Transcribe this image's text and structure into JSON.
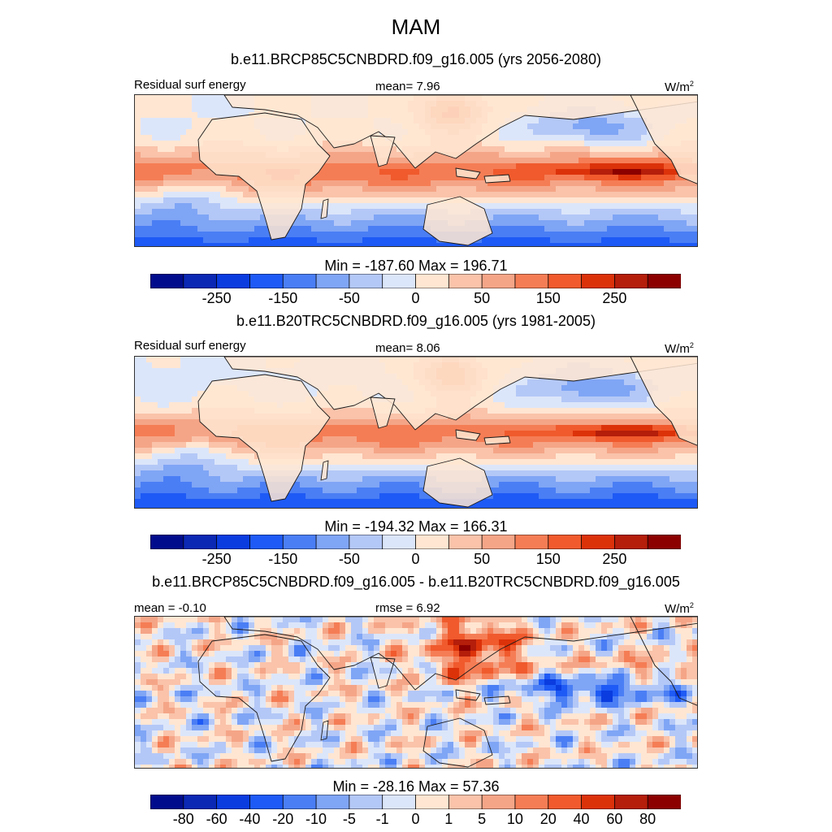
{
  "chart_data": [
    {
      "type": "heatmap",
      "figure_title": "MAM",
      "title": "b.e11.BRCP85C5CNBDRD.f09_g16.005 (yrs 2056-2080)",
      "left_label": "Residual surf energy",
      "center_label": "mean=   7.96",
      "units": "W/m",
      "units_sup": "2",
      "minmax": "Min = -187.60 Max = 196.71",
      "colorbar_levels": [
        "-250",
        "-150",
        "-50",
        "0",
        "50",
        "150",
        "250"
      ],
      "colorbar_colors": [
        "#000c8c",
        "#0a28b4",
        "#0a3ce0",
        "#1e5af5",
        "#4a7ef5",
        "#7fa5f5",
        "#b4c8f7",
        "#dce6fa",
        "#ffe6d2",
        "#fac3aa",
        "#f5a587",
        "#f57d55",
        "#f05a2d",
        "#dc320a",
        "#b41e0a",
        "#8c0000"
      ]
    },
    {
      "type": "heatmap",
      "title": "b.e11.B20TRC5CNBDRD.f09_g16.005 (yrs 1981-2005)",
      "left_label": "Residual surf energy",
      "center_label": "mean=   8.06",
      "units": "W/m",
      "units_sup": "2",
      "minmax": "Min = -194.32 Max = 166.31",
      "colorbar_levels": [
        "-250",
        "-150",
        "-50",
        "0",
        "50",
        "150",
        "250"
      ]
    },
    {
      "type": "heatmap",
      "title": "b.e11.BRCP85C5CNBDRD.f09_g16.005 - b.e11.B20TRC5CNBDRD.f09_g16.005",
      "left_label": "mean =  -0.10",
      "center_label": "rmse =   6.92",
      "units": "W/m",
      "units_sup": "2",
      "minmax": "Min = -28.16 Max =  57.36",
      "colorbar_levels": [
        "-80",
        "-60",
        "-40",
        "-20",
        "-10",
        "-5",
        "-1",
        "0",
        "1",
        "5",
        "10",
        "20",
        "40",
        "60",
        "80"
      ]
    }
  ]
}
